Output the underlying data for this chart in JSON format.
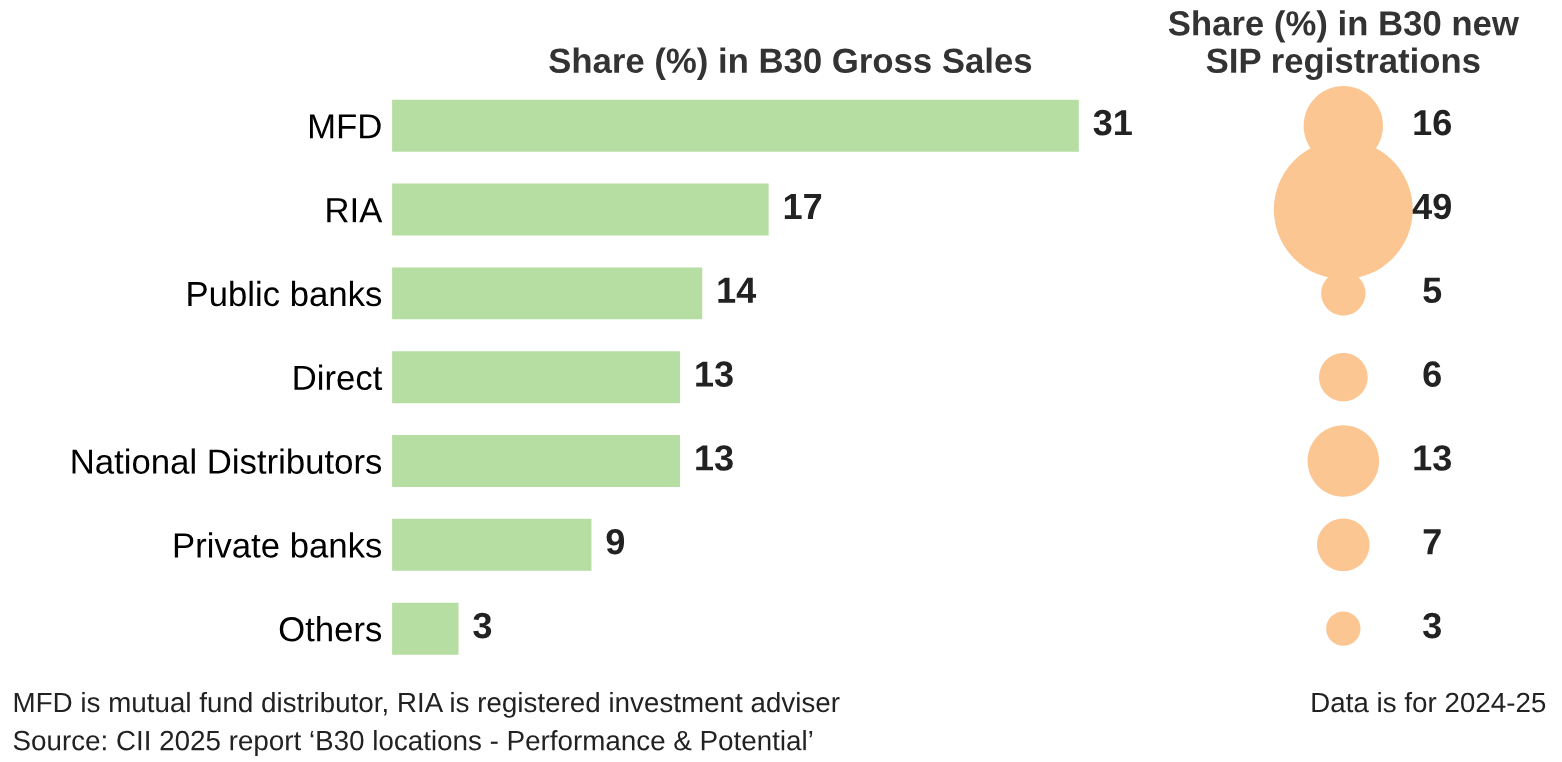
{
  "chart_data": [
    {
      "type": "bar",
      "orientation": "horizontal",
      "title": "Share (%) in B30 Gross Sales",
      "categories": [
        "MFD",
        "RIA",
        "Public banks",
        "Direct",
        "National Distributors",
        "Private banks",
        "Others"
      ],
      "values": [
        31,
        17,
        14,
        13,
        13,
        9,
        3
      ],
      "color": "#b6dea2",
      "data_labels": true,
      "grid": false,
      "tick_labels": "y",
      "annotations": [
        "MFD is mutual fund distributor, RIA is registered investment adviser",
        "Source: CII 2025 report ‘B30 locations - Performance & Potential’"
      ]
    },
    {
      "type": "other",
      "title": "Share (%) in B30 new\nSIP registrations",
      "categories": [
        null,
        null,
        null,
        null,
        null,
        null,
        null
      ],
      "values": [
        16,
        49,
        5,
        6,
        13,
        7,
        3
      ],
      "color": "#fcc692",
      "data_labels": true,
      "annotations": [
        "Data is for 2024-25"
      ]
    }
  ]
}
